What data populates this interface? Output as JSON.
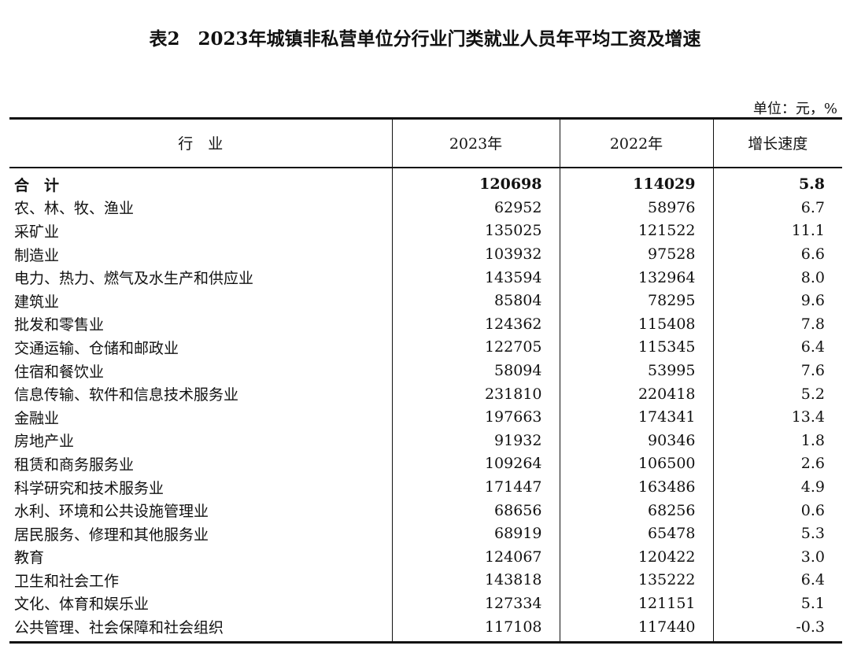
{
  "title": "表2　2023年城镇非私营单位分行业门类就业人员年平均工资及增速",
  "unit": "单位：元，%",
  "headers": [
    "行　业",
    "2023年",
    "2022年",
    "增长速度"
  ],
  "rows": [
    {
      "industry": "合　计",
      "y2023": "120698",
      "y2022": "114029",
      "growth": "5.8"
    },
    {
      "industry": "农、林、牧、渔业",
      "y2023": "62952",
      "y2022": "58976",
      "growth": "6.7"
    },
    {
      "industry": "采矿业",
      "y2023": "135025",
      "y2022": "121522",
      "growth": "11.1"
    },
    {
      "industry": "制造业",
      "y2023": "103932",
      "y2022": "97528",
      "growth": "6.6"
    },
    {
      "industry": "电力、热力、燃气及水生产和供应业",
      "y2023": "143594",
      "y2022": "132964",
      "growth": "8.0"
    },
    {
      "industry": "建筑业",
      "y2023": "85804",
      "y2022": "78295",
      "growth": "9.6"
    },
    {
      "industry": "批发和零售业",
      "y2023": "124362",
      "y2022": "115408",
      "growth": "7.8"
    },
    {
      "industry": "交通运输、仓储和邮政业",
      "y2023": "122705",
      "y2022": "115345",
      "growth": "6.4"
    },
    {
      "industry": "住宿和餐饮业",
      "y2023": "58094",
      "y2022": "53995",
      "growth": "7.6"
    },
    {
      "industry": "信息传输、软件和信息技术服务业",
      "y2023": "231810",
      "y2022": "220418",
      "growth": "5.2"
    },
    {
      "industry": "金融业",
      "y2023": "197663",
      "y2022": "174341",
      "growth": "13.4"
    },
    {
      "industry": "房地产业",
      "y2023": "91932",
      "y2022": "90346",
      "growth": "1.8"
    },
    {
      "industry": "租赁和商务服务业",
      "y2023": "109264",
      "y2022": "106500",
      "growth": "2.6"
    },
    {
      "industry": "科学研究和技术服务业",
      "y2023": "171447",
      "y2022": "163486",
      "growth": "4.9"
    },
    {
      "industry": "水利、环境和公共设施管理业",
      "y2023": "68656",
      "y2022": "68256",
      "growth": "0.6"
    },
    {
      "industry": "居民服务、修理和其他服务业",
      "y2023": "68919",
      "y2022": "65478",
      "growth": "5.3"
    },
    {
      "industry": "教育",
      "y2023": "124067",
      "y2022": "120422",
      "growth": "3.0"
    },
    {
      "industry": "卫生和社会工作",
      "y2023": "143818",
      "y2022": "135222",
      "growth": "6.4"
    },
    {
      "industry": "文化、体育和娱乐业",
      "y2023": "127334",
      "y2022": "121151",
      "growth": "5.1"
    },
    {
      "industry": "公共管理、社会保障和社会组织",
      "y2023": "117108",
      "y2022": "117440",
      "growth": "-0.3"
    }
  ]
}
